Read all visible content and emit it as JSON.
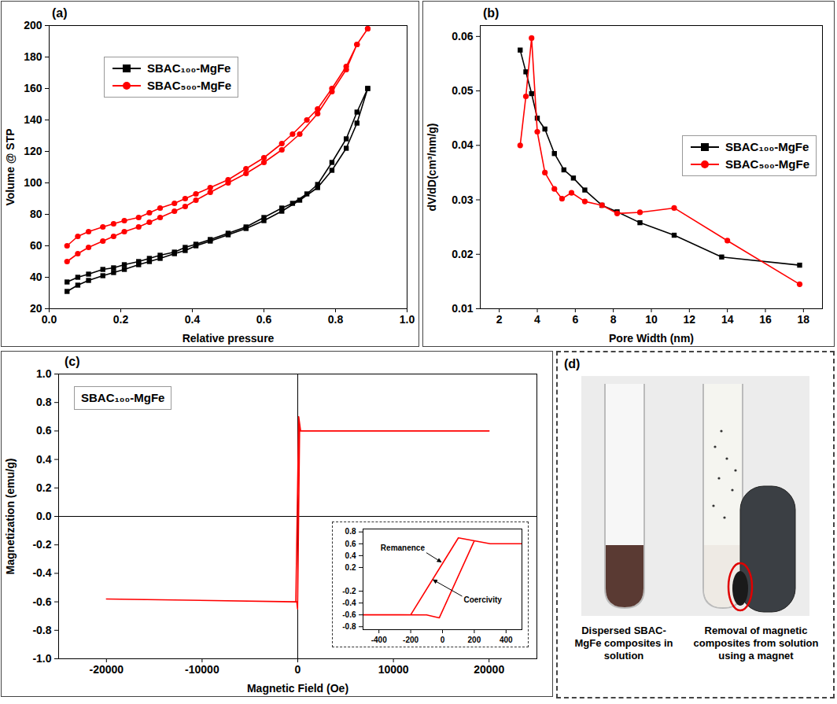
{
  "chart_data": [
    {
      "type": "line",
      "title": "(a)",
      "x_label": "Relative pressure",
      "y_label": "Volume @ STP",
      "xlim": [
        0,
        1
      ],
      "xticks": [
        {
          "value": 0,
          "label": "0.0"
        },
        0.2,
        0.4,
        0.6,
        0.8,
        {
          "value": 1,
          "label": "1.0"
        }
      ],
      "ylim": [
        20,
        200
      ],
      "yticks": [
        20,
        40,
        60,
        80,
        100,
        120,
        140,
        160,
        180,
        200
      ],
      "legend": "top-left",
      "series": [
        {
          "name": "SBAC₁₀₀-MgFe",
          "color": "#000000",
          "marker": "square",
          "x": [
            0.05,
            0.08,
            0.11,
            0.15,
            0.18,
            0.21,
            0.25,
            0.28,
            0.31,
            0.35,
            0.38,
            0.41,
            0.45,
            0.5,
            0.55,
            0.6,
            0.65,
            0.7,
            0.75,
            0.79,
            0.83,
            0.86,
            0.89,
            0.89,
            0.86,
            0.83,
            0.79,
            0.75,
            0.72,
            0.68,
            0.65,
            0.6,
            0.55,
            0.5,
            0.45,
            0.41,
            0.38,
            0.35,
            0.31,
            0.28,
            0.25,
            0.21,
            0.18,
            0.15,
            0.11,
            0.08,
            0.05
          ],
          "values": [
            31,
            35,
            38,
            41,
            43,
            45,
            48,
            50,
            52,
            55,
            57,
            60,
            63,
            67,
            71,
            76,
            82,
            89,
            97,
            108,
            122,
            138,
            160,
            160,
            145,
            128,
            113,
            99,
            93,
            87,
            84,
            78,
            72,
            68,
            64,
            61,
            59,
            56,
            54,
            52,
            50,
            48,
            46,
            45,
            42,
            40,
            37
          ]
        },
        {
          "name": "SBAC₅₀₀-MgFe",
          "color": "#ff0000",
          "marker": "circle",
          "x": [
            0.05,
            0.08,
            0.11,
            0.15,
            0.18,
            0.21,
            0.25,
            0.28,
            0.31,
            0.35,
            0.38,
            0.41,
            0.45,
            0.5,
            0.55,
            0.6,
            0.65,
            0.7,
            0.75,
            0.79,
            0.83,
            0.86,
            0.89,
            0.89,
            0.86,
            0.83,
            0.79,
            0.75,
            0.72,
            0.68,
            0.65,
            0.6,
            0.55,
            0.5,
            0.45,
            0.41,
            0.38,
            0.35,
            0.31,
            0.28,
            0.25,
            0.21,
            0.18,
            0.15,
            0.11,
            0.08,
            0.05
          ],
          "values": [
            50,
            55,
            59,
            63,
            66,
            69,
            72,
            75,
            78,
            82,
            85,
            89,
            94,
            100,
            106,
            113,
            121,
            131,
            144,
            158,
            172,
            188,
            198,
            198,
            188,
            174,
            160,
            147,
            140,
            131,
            125,
            116,
            109,
            102,
            97,
            93,
            90,
            87,
            84,
            81,
            78,
            76,
            74,
            72,
            69,
            66,
            60
          ]
        }
      ]
    },
    {
      "type": "line",
      "title": "(b)",
      "x_label": "Pore Width (nm)",
      "y_label": "dV/dD(cm³/nm/g)",
      "xlim": [
        1,
        19
      ],
      "xticks": [
        2,
        4,
        6,
        8,
        10,
        12,
        14,
        16,
        18
      ],
      "ylim": [
        0.01,
        0.062
      ],
      "yticks": [
        0.01,
        0.02,
        0.03,
        0.04,
        0.05,
        0.06
      ],
      "legend": "right",
      "series": [
        {
          "name": "SBAC₁₀₀-MgFe",
          "color": "#000000",
          "marker": "square",
          "x": [
            3.1,
            3.4,
            3.7,
            4.0,
            4.4,
            4.9,
            5.4,
            5.9,
            6.5,
            7.4,
            8.2,
            9.4,
            11.2,
            13.7,
            17.8
          ],
          "values": [
            0.0575,
            0.0535,
            0.0495,
            0.045,
            0.043,
            0.0385,
            0.0355,
            0.034,
            0.0318,
            0.029,
            0.0278,
            0.0258,
            0.0235,
            0.0195,
            0.018
          ]
        },
        {
          "name": "SBAC₅₀₀-MgFe",
          "color": "#ff0000",
          "marker": "circle",
          "x": [
            3.1,
            3.4,
            3.7,
            4.0,
            4.4,
            4.9,
            5.3,
            5.8,
            6.5,
            7.4,
            8.2,
            9.4,
            11.2,
            14.0,
            17.8
          ],
          "values": [
            0.04,
            0.049,
            0.0597,
            0.0425,
            0.035,
            0.032,
            0.0302,
            0.0313,
            0.0297,
            0.029,
            0.0275,
            0.0277,
            0.0285,
            0.0225,
            0.0145
          ]
        }
      ]
    },
    {
      "type": "line",
      "title": "(c)",
      "x_label": "Magnetic Field (Oe)",
      "y_label": "Magnetization (emu/g)",
      "xlim": [
        -25000,
        25000
      ],
      "xticks": [
        -20000,
        -10000,
        0,
        10000,
        20000
      ],
      "ylim": [
        -1,
        1
      ],
      "yticks": [
        {
          "value": -1,
          "label": "-1.0"
        },
        -0.8,
        -0.6,
        -0.4,
        -0.2,
        {
          "value": 0,
          "label": "0.0"
        },
        0.2,
        0.4,
        0.6,
        0.8,
        {
          "value": 1,
          "label": "1.0"
        }
      ],
      "legend": "top-left",
      "series": [
        {
          "name": "SBAC₁₀₀-MgFe",
          "color": "#ff0000",
          "x": [
            -20000,
            -100,
            -20,
            200,
            300,
            20000,
            300,
            100,
            -200,
            -20000
          ],
          "values": [
            -0.58,
            -0.6,
            -0.65,
            0.65,
            0.6,
            0.6,
            0.6,
            0.7,
            -0.6,
            -0.58
          ]
        }
      ],
      "inset": {
        "xlim": [
          -500,
          500
        ],
        "xticks": [
          -400,
          -200,
          0,
          200,
          400
        ],
        "ylim": [
          -0.85,
          0.85
        ],
        "yticks": [
          -0.8,
          -0.6,
          -0.4,
          -0.2,
          0.2,
          0.4,
          0.6,
          0.8
        ],
        "annotations": [
          {
            "text": "Remanence",
            "x": 0,
            "y": 0.27
          },
          {
            "text": "Coercivity",
            "x": -62,
            "y": 0
          }
        ]
      }
    }
  ],
  "panel_d": {
    "title": "(d)",
    "captions": [
      "Dispersed SBAC-MgFe composites in solution",
      "Removal of magnetic composites from solution using a magnet"
    ]
  }
}
